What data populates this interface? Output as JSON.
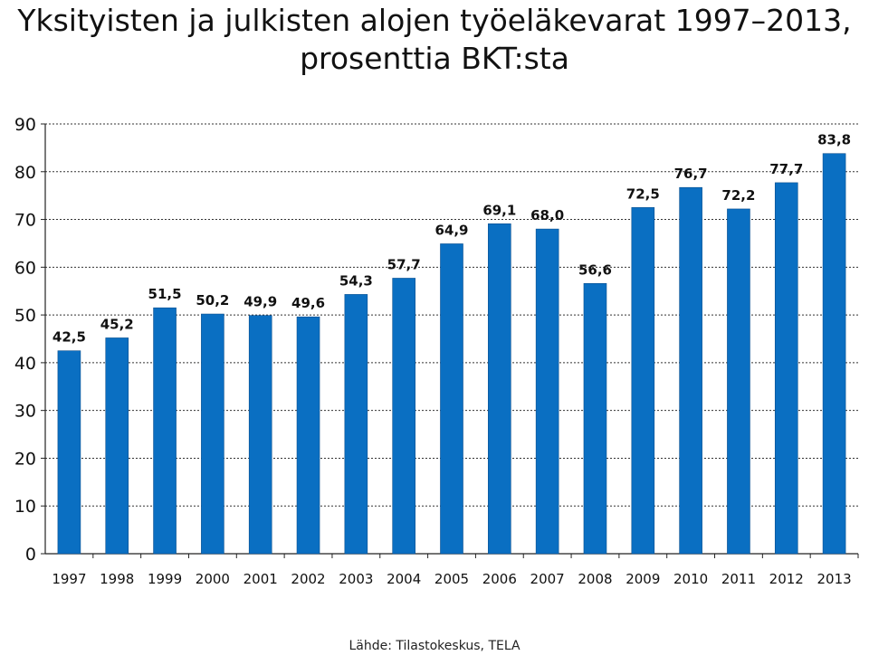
{
  "title_line1": "Yksityisten ja julkisten alojen työeläkevarat 1997–2013,",
  "title_line2": "prosenttia BKT:sta",
  "source": "Lähde: Tilastokeskus, TELA",
  "chart_data": {
    "type": "bar",
    "title": "Yksityisten ja julkisten alojen työeläkevarat 1997–2013, prosenttia BKT:sta",
    "xlabel": "",
    "ylabel": "",
    "ylim": [
      0,
      90
    ],
    "yticks": [
      0,
      10,
      20,
      30,
      40,
      50,
      60,
      70,
      80,
      90
    ],
    "grid": true,
    "bar_color": "#0a6fc2",
    "categories": [
      "1997",
      "1998",
      "1999",
      "2000",
      "2001",
      "2002",
      "2003",
      "2004",
      "2005",
      "2006",
      "2007",
      "2008",
      "2009",
      "2010",
      "2011",
      "2012",
      "2013"
    ],
    "values": [
      42.5,
      45.2,
      51.5,
      50.2,
      49.9,
      49.6,
      54.3,
      57.7,
      64.9,
      69.1,
      68.0,
      56.6,
      72.5,
      76.7,
      72.2,
      77.7,
      83.8
    ],
    "labels": [
      "42,5",
      "45,2",
      "51,5",
      "50,2",
      "49,9",
      "49,6",
      "54,3",
      "57,7",
      "64,9",
      "69,1",
      "68,0",
      "56,6",
      "72,5",
      "76,7",
      "72,2",
      "77,7",
      "83,8"
    ]
  }
}
